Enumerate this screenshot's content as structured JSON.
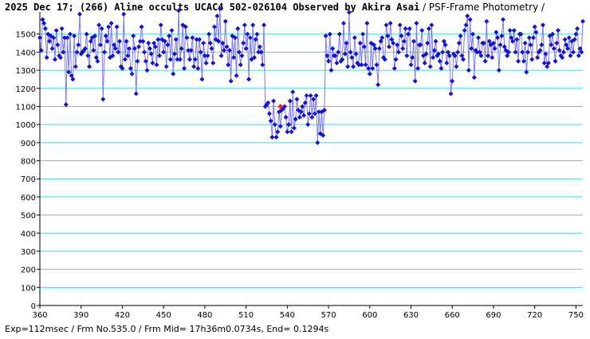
{
  "title": {
    "main": "2025 Dec 17; (266) Aline occults UCAC4 502-026104 Observed by Akira Asai",
    "sub": " / PSF-Frame Photometry /"
  },
  "footer": "Exp=112msec / Frm No.535.0 / Frm Mid= 17h36m0.0734s, End= 0.1294s",
  "colors": {
    "series": "#1010e0",
    "line": "#7a7ae8",
    "grid": "#44d8d8",
    "marker_highlight": "#ff2020"
  },
  "chart_data": {
    "type": "line",
    "title": "2025 Dec 17; (266) Aline occults UCAC4 502-026104 Observed by Akira Asai / PSF-Frame Photometry /",
    "xlabel": "",
    "ylabel": "",
    "xlim": [
      360,
      755
    ],
    "ylim": [
      0,
      1600
    ],
    "xticks": [
      360,
      390,
      420,
      450,
      480,
      510,
      540,
      570,
      600,
      630,
      660,
      690,
      720,
      750
    ],
    "yticks": [
      0,
      100,
      200,
      300,
      400,
      500,
      600,
      700,
      800,
      900,
      1000,
      1100,
      1200,
      1300,
      1400,
      1500
    ],
    "grid": "horizontal",
    "highlight": {
      "x": 535,
      "y": 1100
    },
    "series": [
      {
        "values_start_frame": 360,
        "values": [
          1480,
          1410,
          1580,
          1560,
          1530,
          1370,
          1500,
          1460,
          1490,
          1420,
          1480,
          1360,
          1520,
          1440,
          1380,
          1370,
          1530,
          1400,
          1480,
          1110,
          1480,
          1290,
          1500,
          1270,
          1250,
          1490,
          1320,
          1400,
          1440,
          1610,
          1390,
          1400,
          1410,
          1420,
          1500,
          1380,
          1320,
          1460,
          1480,
          1410,
          1490,
          1370,
          1350,
          1550,
          1440,
          1530,
          1140,
          1400,
          1490,
          1460,
          1540,
          1370,
          1560,
          1380,
          1440,
          1420,
          1540,
          1400,
          1460,
          1320,
          1310,
          1610,
          1360,
          1460,
          1380,
          1420,
          1310,
          1280,
          1490,
          1420,
          1170,
          1350,
          1430,
          1460,
          1540,
          1460,
          1400,
          1350,
          1300,
          1450,
          1420,
          1390,
          1340,
          1450,
          1430,
          1330,
          1470,
          1380,
          1550,
          1470,
          1400,
          1460,
          1320,
          1440,
          1490,
          1360,
          1520,
          1280,
          1390,
          1470,
          1360,
          1630,
          1360,
          1420,
          1550,
          1310,
          1540,
          1480,
          1410,
          1360,
          1410,
          1480,
          1320,
          1360,
          1470,
          1310,
          1470,
          1400,
          1250,
          1450,
          1380,
          1340,
          1380,
          1500,
          1450,
          1420,
          1340,
          1540,
          1470,
          1600,
          1460,
          1640,
          1380,
          1450,
          1410,
          1570,
          1430,
          1330,
          1410,
          1240,
          1490,
          1370,
          1480,
          1270,
          1530,
          1400,
          1330,
          1380,
          1450,
          1550,
          1420,
          1500,
          1250,
          1480,
          1360,
          1550,
          1370,
          1470,
          1500,
          1400,
          1430,
          1400,
          1330,
          1550,
          1100,
          1110,
          1120,
          1060,
          1020,
          930,
          1130,
          1000,
          930,
          960,
          1070,
          990,
          1080,
          1090,
          1100,
          1040,
          960,
          1000,
          1130,
          960,
          1180,
          980,
          1030,
          1140,
          1080,
          1040,
          1070,
          1100,
          1050,
          1120,
          1160,
          1000,
          1060,
          1160,
          1040,
          1140,
          1060,
          1160,
          900,
          1070,
          950,
          1070,
          940,
          1080,
          1490,
          1380,
          1350,
          1500,
          1300,
          1420,
          1380,
          1380,
          1340,
          1400,
          1500,
          1350,
          1360,
          1560,
          1390,
          1450,
          1320,
          1620,
          1400,
          1370,
          1320,
          1480,
          1390,
          1340,
          1330,
          1450,
          1330,
          1500,
          1430,
          1330,
          1560,
          1310,
          1280,
          1450,
          1310,
          1440,
          1420,
          1330,
          1220,
          1420,
          1460,
          1480,
          1370,
          1360,
          1550,
          1490,
          1430,
          1560,
          1470,
          1450,
          1310,
          1360,
          1440,
          1400,
          1550,
          1490,
          1420,
          1460,
          1530,
          1380,
          1500,
          1530,
          1330,
          1370,
          1460,
          1240,
          1560,
          1310,
          1440,
          1440,
          1520,
          1380,
          1340,
          1390,
          1450,
          1530,
          1320,
          1550,
          1370,
          1410,
          1460,
          1380,
          1390,
          1350,
          1310,
          1400,
          1460,
          1440,
          1340,
          1400,
          1380,
          1170,
          1240,
          1390,
          1380,
          1320,
          1400,
          1450,
          1490,
          1380,
          1360,
          1520,
          1550,
          1600,
          1300,
          1580,
          1420,
          1500,
          1260,
          1410,
          1400,
          1480,
          1400,
          1380,
          1450,
          1450,
          1350,
          1570,
          1380,
          1460,
          1440,
          1370,
          1450,
          1420,
          1510,
          1480,
          1300,
          1440,
          1490,
          1580,
          1430,
          1410,
          1380,
          1400,
          1520,
          1480,
          1460,
          1520,
          1400,
          1470,
          1350,
          1500,
          1500,
          1400,
          1350,
          1450,
          1290,
          1400,
          1480,
          1440,
          1360,
          1480,
          1540,
          1510,
          1370,
          1400,
          1410,
          1440,
          1550,
          1340,
          1390,
          1320,
          1340,
          1490,
          1440,
          1500,
          1420,
          1350,
          1450,
          1520,
          1410,
          1380,
          1370,
          1400,
          1470,
          1440,
          1420,
          1480,
          1380,
          1460,
          1400,
          1470,
          1500,
          1530,
          1380,
          1420,
          1400,
          1570
        ]
      }
    ]
  }
}
